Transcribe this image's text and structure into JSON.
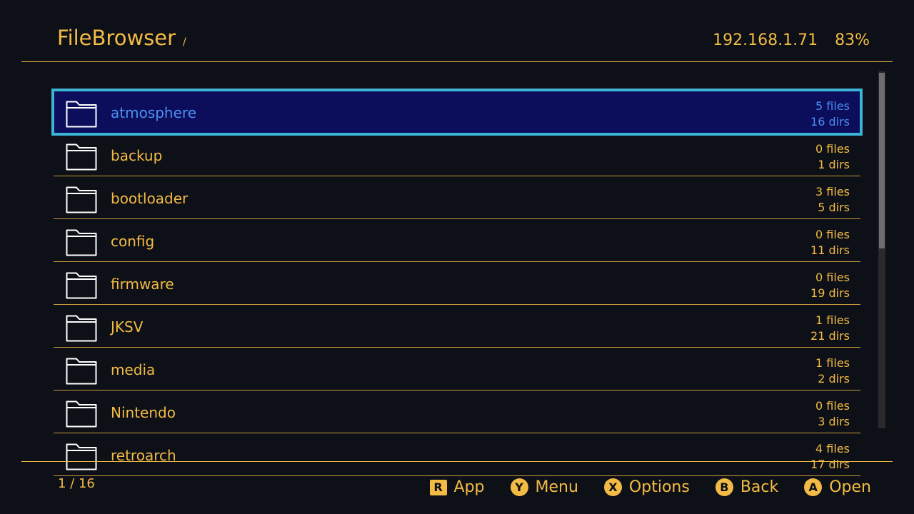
{
  "header": {
    "title": "FileBrowser",
    "path": "/",
    "ip": "192.168.1.71",
    "battery": "83%"
  },
  "colors": {
    "accent": "#f3bb45",
    "selected_bg": "#0c0e5c",
    "selected_border": "#3cb4d6",
    "selected_text": "#4b8ff0",
    "background": "#0e1017"
  },
  "items": [
    {
      "name": "atmosphere",
      "files": "5 files",
      "dirs": "16 dirs",
      "icon": "folder-icon",
      "selected": true
    },
    {
      "name": "backup",
      "files": "0 files",
      "dirs": "1 dirs",
      "icon": "folder-icon"
    },
    {
      "name": "bootloader",
      "files": "3 files",
      "dirs": "5 dirs",
      "icon": "folder-icon"
    },
    {
      "name": "config",
      "files": "0 files",
      "dirs": "11 dirs",
      "icon": "folder-icon"
    },
    {
      "name": "firmware",
      "files": "0 files",
      "dirs": "19 dirs",
      "icon": "folder-icon"
    },
    {
      "name": "JKSV",
      "files": "1 files",
      "dirs": "21 dirs",
      "icon": "folder-icon"
    },
    {
      "name": "media",
      "files": "1 files",
      "dirs": "2 dirs",
      "icon": "folder-icon"
    },
    {
      "name": "Nintendo",
      "files": "0 files",
      "dirs": "3 dirs",
      "icon": "folder-icon"
    },
    {
      "name": "retroarch",
      "files": "4 files",
      "dirs": "17 dirs",
      "icon": "folder-icon"
    }
  ],
  "footer": {
    "page": "1 / 16",
    "hints": [
      {
        "key": "R",
        "label": "App"
      },
      {
        "key": "Y",
        "label": "Menu"
      },
      {
        "key": "X",
        "label": "Options"
      },
      {
        "key": "B",
        "label": "Back"
      },
      {
        "key": "A",
        "label": "Open"
      }
    ]
  }
}
